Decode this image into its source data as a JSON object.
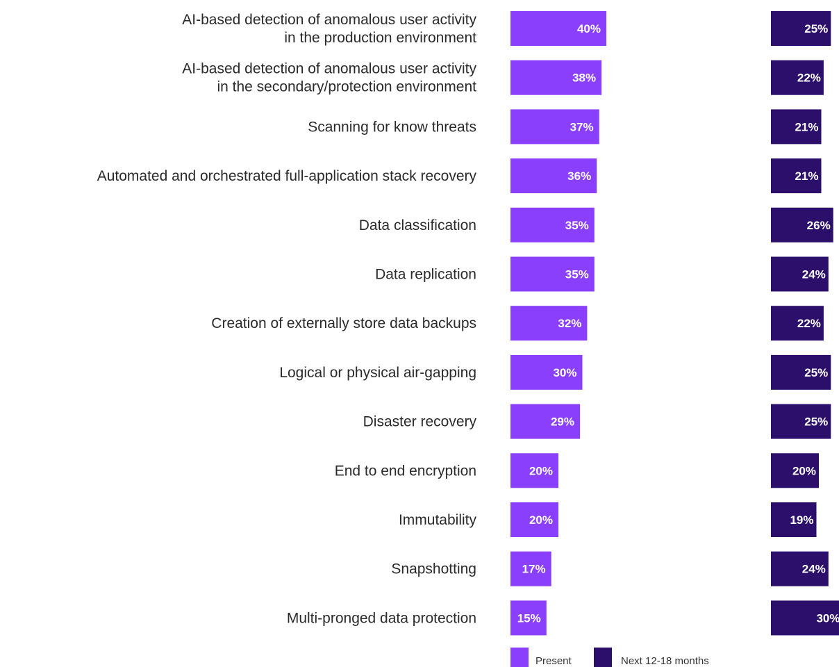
{
  "chart_data": {
    "type": "bar",
    "orientation": "horizontal",
    "categories": [
      [
        "AI-based detection of anomalous user activity",
        "in the production environment"
      ],
      [
        "AI-based detection of anomalous user activity",
        "in the secondary/protection environment"
      ],
      [
        "Scanning for know threats"
      ],
      [
        "Automated and orchestrated full-application stack recovery"
      ],
      [
        "Data classification"
      ],
      [
        "Data replication"
      ],
      [
        "Creation of externally store data backups"
      ],
      [
        "Logical or physical air-gapping"
      ],
      [
        "Disaster recovery"
      ],
      [
        "End to end encryption"
      ],
      [
        "Immutability"
      ],
      [
        "Snapshotting"
      ],
      [
        "Multi-pronged data protection"
      ]
    ],
    "series": [
      {
        "name": "Present",
        "color": "#8a3ffc",
        "values": [
          40,
          38,
          37,
          36,
          35,
          35,
          32,
          30,
          29,
          20,
          20,
          17,
          15
        ],
        "labels": [
          "40%",
          "38%",
          "37%",
          "36%",
          "35%",
          "35%",
          "32%",
          "30%",
          "29%",
          "20%",
          "20%",
          "17%",
          "15%"
        ]
      },
      {
        "name": "Next 12-18 months",
        "color": "#2b0f6b",
        "values": [
          25,
          22,
          21,
          21,
          26,
          24,
          22,
          25,
          25,
          20,
          19,
          24,
          30
        ],
        "labels": [
          "25%",
          "22%",
          "21%",
          "21%",
          "26%",
          "24%",
          "22%",
          "25%",
          "25%",
          "20%",
          "19%",
          "24%",
          "30%"
        ]
      }
    ],
    "unit": "%",
    "legend_position": "bottom",
    "grid": false
  }
}
